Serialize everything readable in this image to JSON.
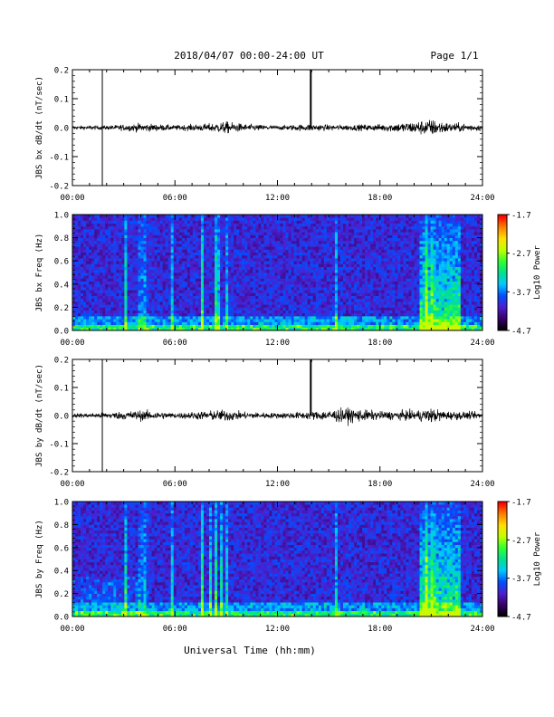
{
  "header": {
    "title": "2018/04/07   00:00-24:00 UT",
    "page_label": "Page 1/1"
  },
  "footer": {
    "xlabel": "Universal Time (hh:mm)"
  },
  "colors": {
    "trace": "#000000",
    "background": "#ffffff",
    "spectrogram_floor": "#2a0a55",
    "colormap": [
      "#000000",
      "#3a006a",
      "#4a20d0",
      "#0050ff",
      "#00c8ff",
      "#00e090",
      "#30ff30",
      "#c0ff00",
      "#ffe000",
      "#ff8000",
      "#ff0000"
    ]
  },
  "chart_data": [
    {
      "type": "line",
      "panel": "bx-waveform",
      "ylabel": "JBS bx dB/dt (nT/sec)",
      "xlim": [
        "00:00",
        "24:00"
      ],
      "ylim": [
        -0.2,
        0.2
      ],
      "x_ticks": [
        "00:00",
        "06:00",
        "12:00",
        "18:00",
        "24:00"
      ],
      "y_ticks": [
        "-0.2",
        "-0.1",
        "0.0",
        "0.1",
        "0.2"
      ],
      "baseline": 0.0,
      "spikes_hours": [
        1.75,
        13.95
      ],
      "noise_envelope": {
        "x": [
          0,
          2,
          3,
          4,
          6,
          8,
          9,
          10,
          12,
          14,
          15,
          17,
          18,
          20,
          21,
          22,
          24
        ],
        "y": [
          0.006,
          0.007,
          0.01,
          0.014,
          0.008,
          0.013,
          0.02,
          0.012,
          0.007,
          0.012,
          0.009,
          0.01,
          0.011,
          0.02,
          0.028,
          0.016,
          0.01
        ]
      }
    },
    {
      "type": "heatmap",
      "panel": "bx-spectrogram",
      "ylabel": "JBS bx Freq (Hz)",
      "xlim": [
        "00:00",
        "24:00"
      ],
      "ylim": [
        0.0,
        1.0
      ],
      "x_ticks": [
        "00:00",
        "06:00",
        "12:00",
        "18:00",
        "24:00"
      ],
      "y_ticks": [
        "0.0",
        "0.2",
        "0.4",
        "0.6",
        "0.8",
        "1.0"
      ],
      "colorbar_label": "Log10 Power",
      "colorbar_ticks": [
        "-1.7",
        "-2.7",
        "-3.7",
        "-4.7"
      ],
      "colorbar_range": [
        -4.7,
        -1.7
      ],
      "vertical_bursts_hours": [
        3.1,
        4.0,
        4.3,
        5.8,
        7.6,
        8.4,
        8.6,
        9.0,
        15.4,
        20.7,
        21.1
      ]
    },
    {
      "type": "line",
      "panel": "by-waveform",
      "ylabel": "JBS by dB/dt (nT/sec)",
      "xlim": [
        "00:00",
        "24:00"
      ],
      "ylim": [
        -0.2,
        0.2
      ],
      "x_ticks": [
        "00:00",
        "06:00",
        "12:00",
        "18:00",
        "24:00"
      ],
      "y_ticks": [
        "-0.2",
        "-0.1",
        "0.0",
        "0.1",
        "0.2"
      ],
      "baseline": 0.0,
      "spikes_hours": [
        1.75,
        13.95
      ],
      "noise_envelope": {
        "x": [
          0,
          2,
          3,
          4,
          6,
          8,
          9,
          10,
          12,
          14,
          15,
          16,
          17,
          18,
          20,
          21,
          22,
          24
        ],
        "y": [
          0.007,
          0.01,
          0.014,
          0.018,
          0.009,
          0.016,
          0.02,
          0.012,
          0.009,
          0.014,
          0.018,
          0.025,
          0.02,
          0.014,
          0.017,
          0.024,
          0.015,
          0.011
        ]
      }
    },
    {
      "type": "heatmap",
      "panel": "by-spectrogram",
      "ylabel": "JBS by Freq (Hz)",
      "xlim": [
        "00:00",
        "24:00"
      ],
      "ylim": [
        0.0,
        1.0
      ],
      "x_ticks": [
        "00:00",
        "06:00",
        "12:00",
        "18:00",
        "24:00"
      ],
      "y_ticks": [
        "0.0",
        "0.2",
        "0.4",
        "0.6",
        "0.8",
        "1.0"
      ],
      "colorbar_label": "Log10 Power",
      "colorbar_ticks": [
        "-1.7",
        "-2.7",
        "-3.7",
        "-4.7"
      ],
      "colorbar_range": [
        -4.7,
        -1.7
      ],
      "vertical_bursts_hours": [
        3.1,
        4.0,
        4.3,
        5.8,
        7.6,
        8.1,
        8.4,
        8.7,
        9.0,
        15.4,
        20.7,
        21.1
      ]
    }
  ]
}
